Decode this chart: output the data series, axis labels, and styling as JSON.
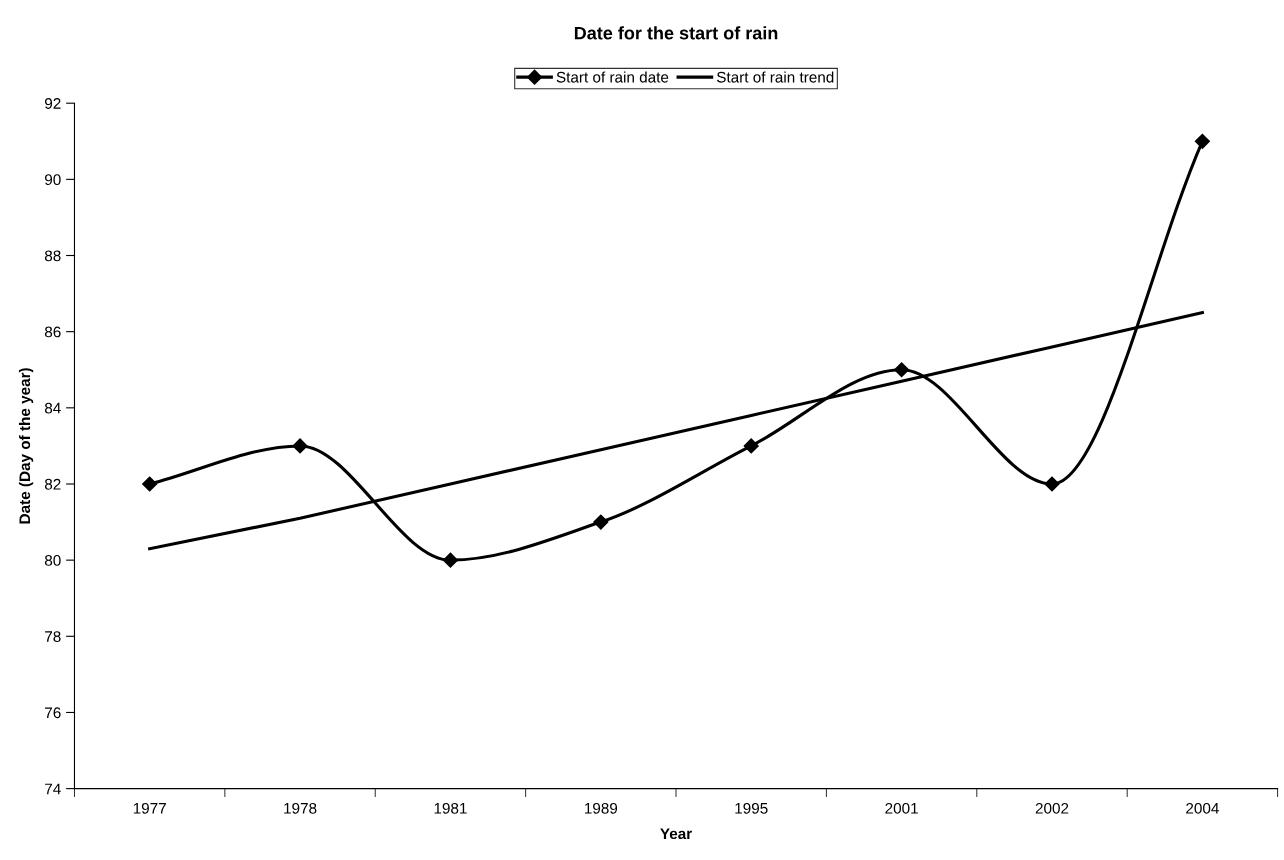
{
  "chart_data": {
    "type": "line",
    "title": "Date for the start of rain",
    "xlabel": "Year",
    "ylabel": "Date (Day of the year)",
    "categories": [
      "1977",
      "1978",
      "1981",
      "1989",
      "1995",
      "2001",
      "2002",
      "2004"
    ],
    "series": [
      {
        "name": "Start of rain date",
        "color": "#000000",
        "values": [
          82,
          83,
          80,
          81,
          83,
          85,
          82,
          91
        ],
        "marker": "diamond"
      },
      {
        "name": "Start of rain trend",
        "color": "#000000",
        "values": [
          80.3,
          81.1,
          82.0,
          82.9,
          83.8,
          84.7,
          85.6,
          86.5
        ],
        "marker": "none"
      }
    ],
    "ylim": [
      74,
      92
    ],
    "yticks": [
      74,
      76,
      78,
      80,
      82,
      84,
      86,
      88,
      90,
      92
    ],
    "grid": false,
    "legend": "top",
    "line_style": "solid"
  }
}
